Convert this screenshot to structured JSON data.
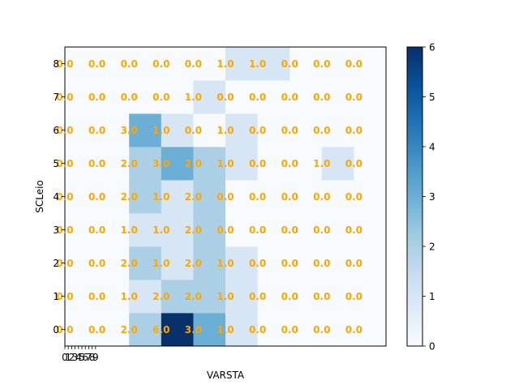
{
  "chart_data": {
    "type": "heatmap",
    "xlabel": "VARSTA",
    "ylabel": "SCLeio",
    "x_tick_labels": [
      "0",
      "1",
      "2",
      "3",
      "4",
      "5",
      "6",
      "7",
      "8",
      "9"
    ],
    "y_tick_labels": [
      "0",
      "1",
      "2",
      "3",
      "4",
      "5",
      "6",
      "7",
      "8"
    ],
    "rows": [
      [
        0,
        0,
        2,
        6,
        3,
        1,
        0,
        0,
        0,
        0
      ],
      [
        0,
        0,
        1,
        2,
        2,
        1,
        0,
        0,
        0,
        0
      ],
      [
        0,
        0,
        2,
        1,
        2,
        1,
        0,
        0,
        0,
        0
      ],
      [
        0,
        0,
        1,
        1,
        2,
        0,
        0,
        0,
        0,
        0
      ],
      [
        0,
        0,
        2,
        1,
        2,
        0,
        0,
        0,
        0,
        0
      ],
      [
        0,
        0,
        2,
        3,
        2,
        1,
        0,
        0,
        1,
        0
      ],
      [
        0,
        0,
        3,
        1,
        0,
        1,
        0,
        0,
        0,
        0
      ],
      [
        0,
        0,
        0,
        0,
        1,
        0,
        0,
        0,
        0,
        0
      ],
      [
        0,
        0,
        0,
        0,
        0,
        1,
        1,
        0,
        0,
        0
      ]
    ],
    "annotations": [
      [
        "0.0",
        "0.0",
        "2.0",
        "6.0",
        "3.0",
        "1.0",
        "0.0",
        "0.0",
        "0.0",
        "0.0"
      ],
      [
        "0.0",
        "0.0",
        "1.0",
        "2.0",
        "2.0",
        "1.0",
        "0.0",
        "0.0",
        "0.0",
        "0.0"
      ],
      [
        "0.0",
        "0.0",
        "2.0",
        "1.0",
        "2.0",
        "1.0",
        "0.0",
        "0.0",
        "0.0",
        "0.0"
      ],
      [
        "0.0",
        "0.0",
        "1.0",
        "1.0",
        "2.0",
        "0.0",
        "0.0",
        "0.0",
        "0.0",
        "0.0"
      ],
      [
        "0.0",
        "0.0",
        "2.0",
        "1.0",
        "2.0",
        "0.0",
        "0.0",
        "0.0",
        "0.0",
        "0.0"
      ],
      [
        "0.0",
        "0.0",
        "2.0",
        "3.0",
        "2.0",
        "1.0",
        "0.0",
        "0.0",
        "1.0",
        "0.0"
      ],
      [
        "0.0",
        "0.0",
        "3.0",
        "1.0",
        "0.0",
        "1.0",
        "0.0",
        "0.0",
        "0.0",
        "0.0"
      ],
      [
        "0.0",
        "0.0",
        "0.0",
        "0.0",
        "1.0",
        "0.0",
        "0.0",
        "0.0",
        "0.0",
        "0.0"
      ],
      [
        "0.0",
        "0.0",
        "0.0",
        "0.0",
        "0.0",
        "1.0",
        "1.0",
        "0.0",
        "0.0",
        "0.0"
      ]
    ],
    "colorbar": {
      "colormap": "Blues",
      "min": 0,
      "max": 6,
      "tick_labels": [
        "0",
        "1",
        "2",
        "3",
        "4",
        "5",
        "6"
      ]
    },
    "annotation_color": "#ffa500",
    "grid": false
  }
}
